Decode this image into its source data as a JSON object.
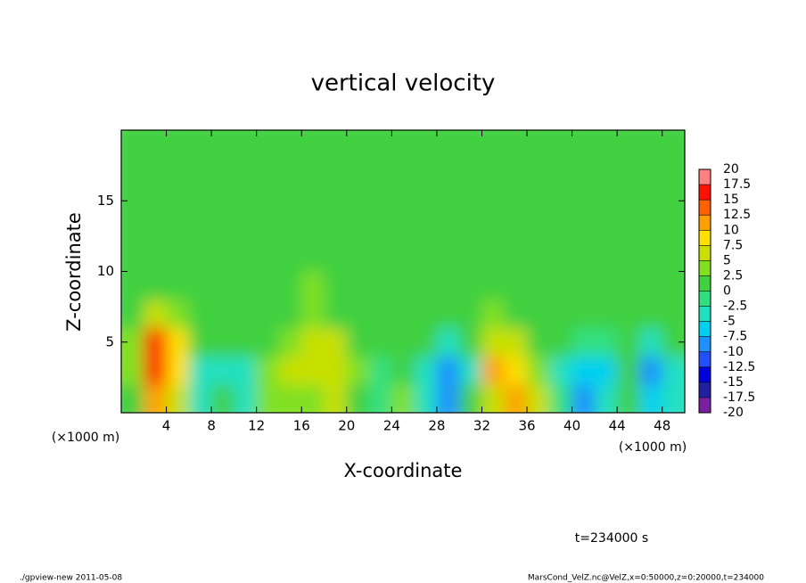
{
  "chart_data": {
    "type": "heatmap",
    "title": "vertical velocity",
    "xlabel": "X-coordinate",
    "ylabel": "Z-coordinate",
    "x_unit_left": "(×1000 m)",
    "x_unit_right": "(×1000 m)",
    "time_label": "t=234000 s",
    "footer_left": "./gpview-new  2011-05-08",
    "footer_right": "MarsCond_VelZ.nc@VelZ,x=0:50000,z=0:20000,t=234000",
    "xlim": [
      0,
      50
    ],
    "ylim": [
      0,
      20
    ],
    "xticks": [
      4,
      8,
      12,
      16,
      20,
      24,
      28,
      32,
      36,
      40,
      44,
      48
    ],
    "yticks": [
      5,
      10,
      15
    ],
    "x": [
      1,
      3,
      5,
      7,
      9,
      11,
      13,
      15,
      17,
      19,
      21,
      23,
      25,
      27,
      29,
      31,
      33,
      35,
      37,
      39,
      41,
      43,
      45,
      47,
      49
    ],
    "y": [
      1,
      3,
      5,
      7,
      9,
      11,
      13,
      15,
      17,
      19
    ],
    "z": [
      [
        2,
        12,
        6,
        -3,
        1,
        -5,
        3,
        4,
        4,
        5,
        2,
        -2,
        3,
        -5,
        -10,
        0,
        5,
        10,
        7,
        -2,
        -8,
        -3,
        1,
        -7,
        -3
      ],
      [
        3,
        16,
        8,
        -3,
        -5,
        -3,
        3,
        5,
        5,
        7,
        3,
        -2,
        0,
        -3,
        -10,
        -3,
        10,
        8,
        3,
        -3,
        -7,
        -7,
        1,
        -8,
        -3
      ],
      [
        3,
        15,
        8,
        1,
        1,
        1,
        1,
        3,
        5,
        5,
        1,
        1,
        1,
        1,
        -5,
        1,
        7,
        5,
        2,
        1,
        -2,
        -2,
        1,
        -3,
        1
      ],
      [
        1,
        7,
        3,
        1,
        1,
        1,
        1,
        1,
        3,
        2,
        1,
        1,
        1,
        1,
        1,
        1,
        3,
        1,
        1,
        1,
        1,
        1,
        1,
        1,
        1
      ],
      [
        1,
        1,
        1,
        1,
        1,
        1,
        1,
        1,
        3,
        1,
        1,
        1,
        1,
        1,
        1,
        1,
        1,
        1,
        1,
        1,
        1,
        1,
        1,
        1,
        1
      ],
      [
        1,
        1,
        1,
        1,
        1,
        1,
        1,
        1,
        1,
        1,
        1,
        1,
        1,
        1,
        1,
        1,
        1,
        1,
        1,
        1,
        1,
        1,
        1,
        1,
        1
      ],
      [
        1,
        1,
        1,
        1,
        1,
        1,
        1,
        1,
        1,
        1,
        1,
        1,
        1,
        1,
        1,
        1,
        1,
        1,
        1,
        1,
        1,
        1,
        1,
        1,
        1
      ],
      [
        1,
        1,
        1,
        1,
        1,
        1,
        1,
        1,
        1,
        1,
        1,
        1,
        1,
        1,
        1,
        1,
        1,
        1,
        1,
        1,
        1,
        1,
        1,
        1,
        1
      ],
      [
        1,
        1,
        1,
        1,
        1,
        1,
        1,
        1,
        1,
        1,
        1,
        1,
        1,
        1,
        1,
        1,
        1,
        1,
        1,
        1,
        1,
        1,
        1,
        1,
        1
      ],
      [
        1,
        1,
        1,
        1,
        1,
        1,
        1,
        1,
        1,
        1,
        1,
        1,
        1,
        1,
        1,
        1,
        1,
        1,
        1,
        1,
        1,
        1,
        1,
        1,
        1
      ]
    ],
    "levels": [
      -20,
      -17.5,
      -15,
      -12.5,
      -10,
      -7.5,
      -5,
      -2.5,
      0,
      2.5,
      5,
      7.5,
      10,
      12.5,
      15,
      17.5,
      20
    ],
    "colors": [
      "#7a1fa0",
      "#2020a0",
      "#0000e0",
      "#2050ff",
      "#1e90ff",
      "#00d0f0",
      "#20e0c0",
      "#30e080",
      "#40d040",
      "#80e020",
      "#c8e000",
      "#ffe000",
      "#ffa000",
      "#ff6000",
      "#ff1000",
      "#ff8080"
    ]
  }
}
